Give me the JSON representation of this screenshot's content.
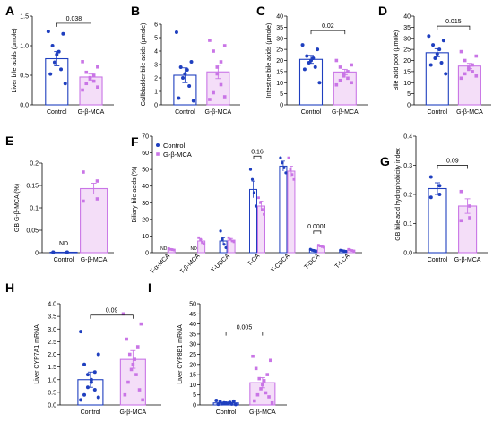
{
  "colors": {
    "control": "#1f3fbf",
    "treat": "#c975e6",
    "treat_fill": "#f4def8",
    "control_fill": "#ffffff"
  },
  "chart_data": [
    {
      "type": "bar",
      "panel": "A",
      "ylabel": "Liver bile acids (μmole)",
      "categories": [
        "Control",
        "G-β-MCA"
      ],
      "ylim": [
        0,
        1.5
      ],
      "yticks": [
        0,
        0.5,
        1,
        1.5
      ],
      "tick_labels": [
        "0.0",
        "0.5",
        "1.0",
        "1.5"
      ],
      "means": [
        0.78,
        0.47
      ],
      "errors": [
        0.12,
        0.05
      ],
      "points": [
        [
          1.24,
          1.2,
          1.0,
          0.9,
          0.85,
          0.72,
          0.6,
          0.52,
          0.36
        ],
        [
          0.73,
          0.64,
          0.55,
          0.5,
          0.46,
          0.44,
          0.4,
          0.36,
          0.3,
          0.25
        ]
      ],
      "sig": "0.038",
      "sig_y": 1.38
    },
    {
      "type": "bar",
      "panel": "B",
      "ylabel": "Gallbladder bile acids (μmole)",
      "categories": [
        "Control",
        "G-β-MCA"
      ],
      "ylim": [
        0,
        6
      ],
      "yticks": [
        0,
        1,
        2,
        3,
        4,
        5,
        6
      ],
      "tick_labels": [
        "0",
        "1",
        "2",
        "3",
        "4",
        "5",
        "6"
      ],
      "means": [
        2.2,
        2.45
      ],
      "errors": [
        0.55,
        0.5
      ],
      "points": [
        [
          5.4,
          3.2,
          2.8,
          2.6,
          2.3,
          2.0,
          1.4,
          0.5,
          0.3
        ],
        [
          4.8,
          4.4,
          4.0,
          3.2,
          2.8,
          2.3,
          1.5,
          0.9,
          0.6,
          0.4
        ]
      ]
    },
    {
      "type": "bar",
      "panel": "C",
      "ylabel": "Intestine bile acids (μmole)",
      "categories": [
        "Control",
        "G-β-MCA"
      ],
      "ylim": [
        0,
        40
      ],
      "yticks": [
        0,
        5,
        10,
        15,
        20,
        25,
        30,
        35,
        40
      ],
      "tick_labels": [
        "0",
        "5",
        "10",
        "15",
        "20",
        "25",
        "30",
        "35",
        "40"
      ],
      "means": [
        20.5,
        14.8
      ],
      "errors": [
        1.8,
        1.2
      ],
      "points": [
        [
          27,
          25,
          22,
          21,
          20,
          19,
          17,
          16,
          10
        ],
        [
          20,
          18,
          17,
          15,
          14,
          13,
          12,
          11,
          10,
          9
        ]
      ],
      "sig": "0.02",
      "sig_y": 33.5
    },
    {
      "type": "bar",
      "panel": "D",
      "ylabel": "Bile acid pool (μmole)",
      "categories": [
        "Control",
        "G-β-MCA"
      ],
      "ylim": [
        0,
        40
      ],
      "yticks": [
        0,
        5,
        10,
        15,
        20,
        25,
        30,
        35,
        40
      ],
      "tick_labels": [
        "0",
        "5",
        "10",
        "15",
        "20",
        "25",
        "30",
        "35",
        "40"
      ],
      "means": [
        23.5,
        17.5
      ],
      "errors": [
        1.8,
        1.2
      ],
      "points": [
        [
          31,
          29,
          27,
          25,
          23,
          21,
          19,
          18,
          14
        ],
        [
          24,
          22,
          20,
          18,
          17,
          16,
          15,
          14,
          13,
          12
        ]
      ],
      "sig": "0.015",
      "sig_y": 35.5
    },
    {
      "type": "bar",
      "panel": "E",
      "ylabel": "GB G-β-MCA (%)",
      "categories": [
        "Control",
        "G-β-MCA"
      ],
      "ylim": [
        0,
        0.2
      ],
      "yticks": [
        0,
        0.05,
        0.1,
        0.15,
        0.2
      ],
      "tick_labels": [
        "0",
        "0.05",
        "0.1",
        "0.15",
        "0.2"
      ],
      "means": [
        0.001,
        0.143
      ],
      "errors": [
        0,
        0.012
      ],
      "points": [
        [
          0.001,
          0.001,
          0.001,
          0.001
        ],
        [
          0.18,
          0.16,
          0.12,
          0.115
        ]
      ],
      "nd_label": "ND"
    },
    {
      "type": "bar",
      "panel": "F",
      "ylabel": "Biliary bile acids (%)",
      "categories": [
        "T-α-MCA",
        "T-β-MCA",
        "T-UDCA",
        "T-CA",
        "T-CDCA",
        "T-DCA",
        "T-LCA"
      ],
      "ylim": [
        0,
        70
      ],
      "yticks": [
        0,
        10,
        20,
        30,
        40,
        50,
        60,
        70
      ],
      "tick_labels": [
        "0",
        "10",
        "20",
        "30",
        "40",
        "50",
        "60",
        "70"
      ],
      "series": [
        {
          "name": "Control",
          "values": [
            0,
            0,
            7,
            38,
            52,
            1.5,
            1.2
          ],
          "errors": [
            0,
            0,
            2,
            5,
            3,
            0.4,
            0.3
          ]
        },
        {
          "name": "G-β-MCA",
          "values": [
            2,
            7,
            7.5,
            28,
            49,
            3.8,
            1.5
          ],
          "errors": [
            0.4,
            1,
            1,
            3,
            3,
            0.4,
            0.3
          ]
        }
      ],
      "points": [
        [
          [],
          [],
          [
            13,
            8,
            5,
            3
          ],
          [
            50,
            44,
            36,
            28
          ],
          [
            57,
            54,
            51,
            48
          ],
          [
            2,
            1.5,
            1.2,
            1
          ],
          [
            1.5,
            1.2,
            1,
            0.8
          ]
        ],
        [
          [
            2.5,
            2,
            1.8,
            1.6
          ],
          [
            9,
            8,
            6,
            5.5
          ],
          [
            9,
            8,
            7,
            6.5
          ],
          [
            33,
            30,
            26,
            23
          ],
          [
            57,
            50,
            47,
            44
          ],
          [
            4.5,
            4,
            3.6,
            3.2
          ],
          [
            2,
            1.6,
            1.3,
            1
          ]
        ]
      ],
      "nd": [
        0,
        1
      ],
      "nd_label": "ND",
      "sigs": [
        {
          "label": "0.16",
          "cat": 3,
          "y": 58
        },
        {
          "label": "0.0001",
          "cat": 5,
          "y": 13
        }
      ],
      "legend": [
        "Control",
        "G-β-MCA"
      ]
    },
    {
      "type": "bar",
      "panel": "G",
      "ylabel": "GB bile acid hydrophobicity index",
      "categories": [
        "Control",
        "G-β-MCA"
      ],
      "ylim": [
        0,
        0.4
      ],
      "yticks": [
        0,
        0.1,
        0.2,
        0.3,
        0.4
      ],
      "tick_labels": [
        "0.0",
        "0.1",
        "0.2",
        "0.3",
        "0.4"
      ],
      "means": [
        0.22,
        0.16
      ],
      "errors": [
        0.02,
        0.025
      ],
      "points": [
        [
          0.26,
          0.23,
          0.2,
          0.19
        ],
        [
          0.21,
          0.16,
          0.12,
          0.11
        ]
      ],
      "sig": "0.09",
      "sig_y": 0.3
    },
    {
      "type": "bar",
      "panel": "H",
      "ylabel": "Liver CYP7A1 mRNA",
      "categories": [
        "Control",
        "G-β-MCA"
      ],
      "ylim": [
        0,
        4
      ],
      "yticks": [
        0,
        0.5,
        1,
        1.5,
        2,
        2.5,
        3,
        3.5,
        4
      ],
      "tick_labels": [
        "0.0",
        "0.5",
        "1.0",
        "1.5",
        "2.0",
        "2.5",
        "3.0",
        "3.5",
        "4.0"
      ],
      "means": [
        1.0,
        1.8
      ],
      "errors": [
        0.3,
        0.35
      ],
      "points": [
        [
          2.9,
          2.0,
          1.6,
          1.3,
          1.2,
          1.0,
          0.9,
          0.7,
          0.6,
          0.4,
          0.3,
          0.2
        ],
        [
          3.6,
          3.2,
          2.6,
          2.3,
          2.0,
          1.8,
          1.6,
          1.4,
          1.2,
          0.9,
          0.6,
          0.4,
          0.2
        ]
      ],
      "sig": "0.09",
      "sig_y": 3.55
    },
    {
      "type": "bar",
      "panel": "I",
      "ylabel": "Liver CYP8B1 mRNA",
      "categories": [
        "Control",
        "G-β-MCA"
      ],
      "ylim": [
        0,
        50
      ],
      "yticks": [
        0,
        5,
        10,
        15,
        20,
        25,
        30,
        35,
        40,
        45,
        50
      ],
      "tick_labels": [
        "0",
        "5",
        "10",
        "15",
        "20",
        "25",
        "30",
        "35",
        "40",
        "45",
        "50"
      ],
      "means": [
        1.0,
        11.0
      ],
      "errors": [
        0.3,
        2.5
      ],
      "points": [
        [
          2.2,
          1.8,
          1.5,
          1.2,
          1.0,
          0.9,
          0.8,
          0.6,
          0.5,
          0.4,
          0.3
        ],
        [
          24,
          22,
          18,
          15,
          13,
          12,
          10,
          8,
          6,
          5,
          4,
          2,
          1
        ]
      ],
      "sig": "0.005",
      "sig_y": 36
    }
  ]
}
